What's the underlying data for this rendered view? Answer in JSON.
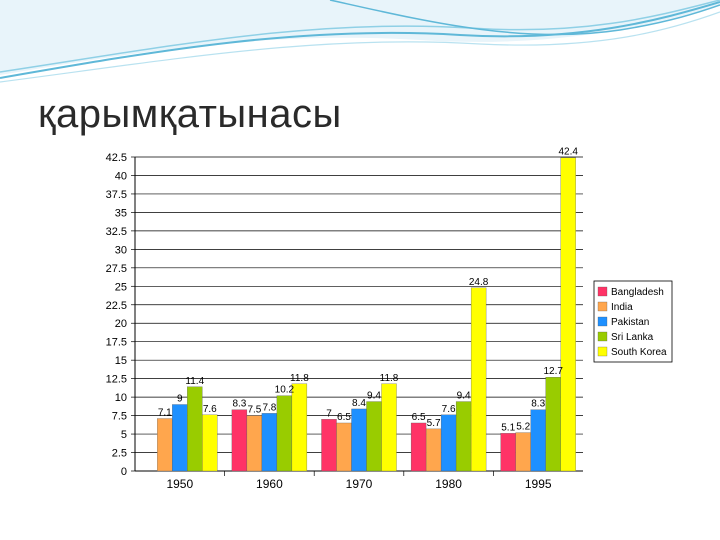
{
  "slide": {
    "title": "қарымқатынасы"
  },
  "colors": {
    "accent_wave": "#5fb8d8",
    "grid": "#000000"
  },
  "chart_data": {
    "type": "bar",
    "categories": [
      "1950",
      "1960",
      "1970",
      "1980",
      "1995"
    ],
    "series": [
      {
        "name": "Bangladesh",
        "color": "#ff3366",
        "values": [
          null,
          8.3,
          7,
          6.5,
          5.1
        ]
      },
      {
        "name": "India",
        "color": "#ffa64d",
        "values": [
          7.1,
          7.5,
          6.5,
          5.7,
          5.2
        ]
      },
      {
        "name": "Pakistan",
        "color": "#1e90ff",
        "values": [
          9,
          7.8,
          8.4,
          7.6,
          8.3
        ]
      },
      {
        "name": "Sri Lanka",
        "color": "#99cc00",
        "values": [
          11.4,
          10.2,
          9.4,
          9.4,
          12.7
        ]
      },
      {
        "name": "South Korea",
        "color": "#ffff00",
        "values": [
          7.6,
          11.8,
          11.8,
          24.8,
          42.4
        ]
      }
    ],
    "data_labels": [
      [
        "",
        "7.1",
        "9",
        "11.4",
        "7.6"
      ],
      [
        "8.3",
        "7.5",
        "7.8",
        "10.2",
        "11.8"
      ],
      [
        "7",
        "6.5",
        "8.4",
        "9.4",
        "11.8"
      ],
      [
        "6.5",
        "5.7",
        "7.6",
        "9.4",
        "24.8"
      ],
      [
        "5.1",
        "5.2",
        "8.3",
        "12.7",
        "42.4"
      ]
    ],
    "y_ticks": [
      "0",
      "2.5",
      "5",
      "7.5",
      "10",
      "12.5",
      "15",
      "17.5",
      "20",
      "22.5",
      "25",
      "27.5",
      "30",
      "32.5",
      "35",
      "37.5",
      "40",
      "42.5"
    ],
    "ylim": [
      0,
      42.5
    ],
    "grid": true,
    "legend": "right"
  }
}
